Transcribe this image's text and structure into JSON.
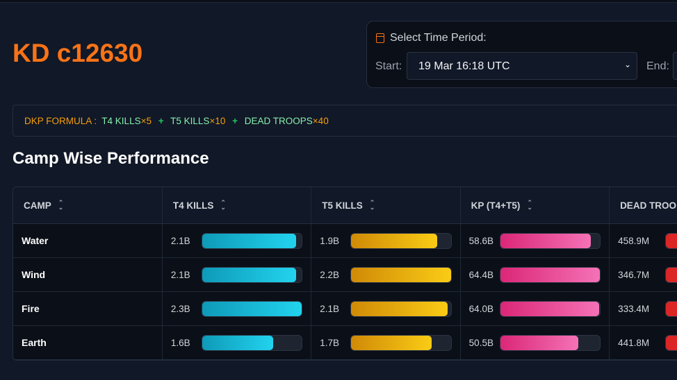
{
  "title": "KD c12630",
  "period": {
    "label": "Select Time Period:",
    "start_label": "Start:",
    "start_value": "19 Mar 16:18 UTC",
    "end_label": "End:"
  },
  "formula": {
    "label": "DKP FORMULA :",
    "t4": "T4 KILLS",
    "t4_mult": "×5",
    "plus": "+",
    "t5": "T5 KILLS",
    "t5_mult": "×10",
    "dead": "DEAD TROOPS",
    "dead_mult": "×40"
  },
  "section_title": "Camp Wise Performance",
  "table": {
    "headers": [
      "CAMP",
      "T4 KILLS",
      "T5 KILLS",
      "KP (T4+T5)",
      "DEAD TROO"
    ],
    "rows": [
      {
        "camp": "Water",
        "t4": "2.1B",
        "t4_pct": 94,
        "t5": "1.9B",
        "t5_pct": 86,
        "kp": "58.6B",
        "kp_pct": 91,
        "dead": "458.9M"
      },
      {
        "camp": "Wind",
        "t4": "2.1B",
        "t4_pct": 94,
        "t5": "2.2B",
        "t5_pct": 100,
        "kp": "64.4B",
        "kp_pct": 100,
        "dead": "346.7M"
      },
      {
        "camp": "Fire",
        "t4": "2.3B",
        "t4_pct": 100,
        "t5": "2.1B",
        "t5_pct": 97,
        "kp": "64.0B",
        "kp_pct": 99,
        "dead": "333.4M"
      },
      {
        "camp": "Earth",
        "t4": "1.6B",
        "t4_pct": 71,
        "t5": "1.7B",
        "t5_pct": 81,
        "kp": "50.5B",
        "kp_pct": 78,
        "dead": "441.8M"
      }
    ]
  }
}
